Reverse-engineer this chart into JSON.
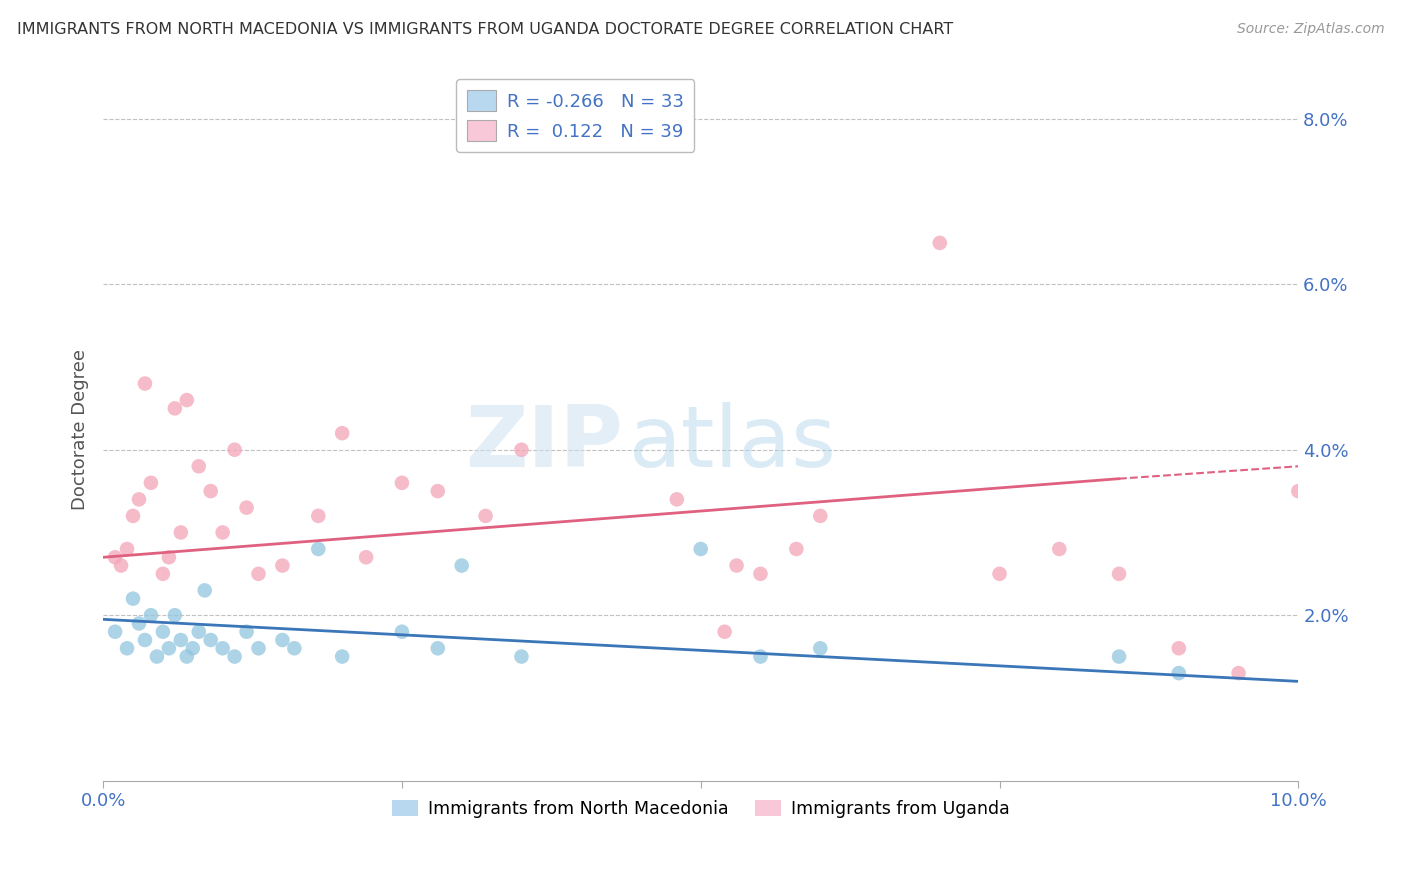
{
  "title": "IMMIGRANTS FROM NORTH MACEDONIA VS IMMIGRANTS FROM UGANDA DOCTORATE DEGREE CORRELATION CHART",
  "source": "Source: ZipAtlas.com",
  "ylabel": "Doctorate Degree",
  "xlim": [
    0.0,
    10.0
  ],
  "ylim": [
    0.0,
    8.5
  ],
  "yticks": [
    2.0,
    4.0,
    6.0,
    8.0
  ],
  "ytick_labels": [
    "2.0%",
    "4.0%",
    "6.0%",
    "8.0%"
  ],
  "watermark_zip": "ZIP",
  "watermark_atlas": "atlas",
  "legend_R1": "-0.266",
  "legend_N1": "33",
  "legend_R2": "0.122",
  "legend_N2": "39",
  "color_blue": "#92c5de",
  "color_blue_line": "#3a76b8",
  "color_pink": "#f4a5b8",
  "color_pink_line": "#e06080",
  "color_legend_blue": "#b8d8f0",
  "color_legend_pink": "#f8c8d8",
  "north_macedonia_x": [
    0.1,
    0.2,
    0.25,
    0.3,
    0.35,
    0.4,
    0.45,
    0.5,
    0.55,
    0.6,
    0.65,
    0.7,
    0.75,
    0.8,
    0.85,
    0.9,
    1.0,
    1.1,
    1.2,
    1.3,
    1.5,
    1.6,
    1.8,
    2.0,
    2.5,
    2.8,
    3.0,
    3.5,
    5.0,
    5.5,
    6.0,
    8.5,
    9.0
  ],
  "north_macedonia_y": [
    1.8,
    1.6,
    2.2,
    1.9,
    1.7,
    2.0,
    1.5,
    1.8,
    1.6,
    2.0,
    1.7,
    1.5,
    1.6,
    1.8,
    2.3,
    1.7,
    1.6,
    1.5,
    1.8,
    1.6,
    1.7,
    1.6,
    2.8,
    1.5,
    1.8,
    1.6,
    2.6,
    1.5,
    2.8,
    1.5,
    1.6,
    1.5,
    1.3
  ],
  "uganda_x": [
    0.1,
    0.15,
    0.2,
    0.25,
    0.3,
    0.35,
    0.4,
    0.5,
    0.55,
    0.6,
    0.65,
    0.7,
    0.8,
    0.9,
    1.0,
    1.1,
    1.2,
    1.3,
    1.5,
    1.8,
    2.0,
    2.2,
    2.5,
    2.8,
    3.2,
    3.5,
    4.8,
    5.2,
    5.3,
    5.5,
    5.8,
    6.0,
    7.0,
    7.5,
    8.0,
    8.5,
    9.0,
    9.5,
    10.0
  ],
  "uganda_y": [
    2.7,
    2.6,
    2.8,
    3.2,
    3.4,
    4.8,
    3.6,
    2.5,
    2.7,
    4.5,
    3.0,
    4.6,
    3.8,
    3.5,
    3.0,
    4.0,
    3.3,
    2.5,
    2.6,
    3.2,
    4.2,
    2.7,
    3.6,
    3.5,
    3.2,
    4.0,
    3.4,
    1.8,
    2.6,
    2.5,
    2.8,
    3.2,
    6.5,
    2.5,
    2.8,
    2.5,
    1.6,
    1.3,
    3.5
  ],
  "regression_nm_x0": 0.0,
  "regression_nm_x1": 10.0,
  "regression_nm_y0": 1.95,
  "regression_nm_y1": 1.2,
  "regression_ug_x0": 0.0,
  "regression_ug_x1": 8.5,
  "regression_ug_x1_dash": 10.0,
  "regression_ug_y0": 2.7,
  "regression_ug_y1": 3.65,
  "regression_ug_y1_dash": 3.8
}
